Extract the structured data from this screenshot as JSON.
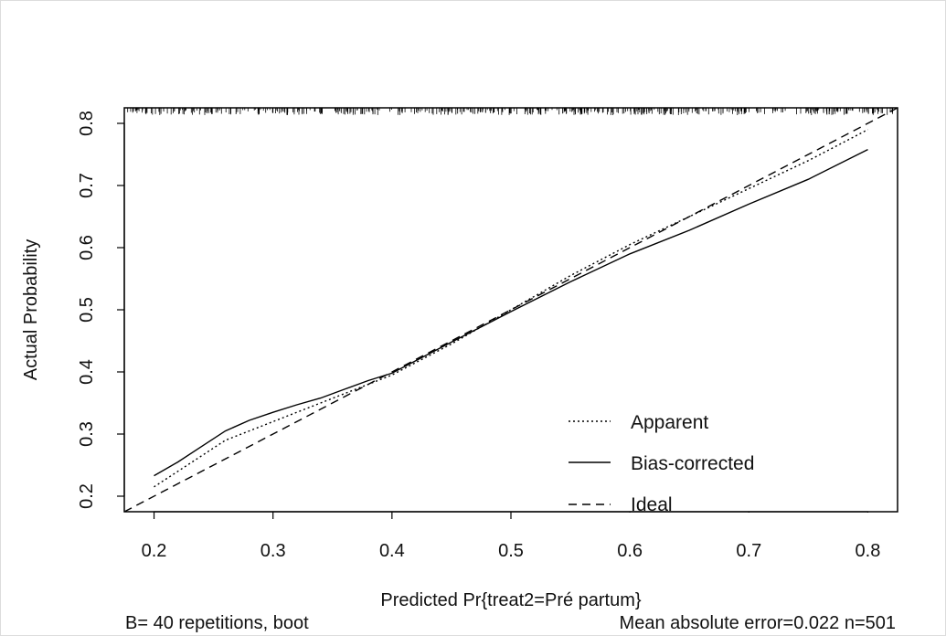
{
  "chart_data": {
    "type": "line",
    "xlabel": "Predicted Pr{treat2=Pré partum}",
    "ylabel": "Actual Probability",
    "xlim": [
      0.175,
      0.825
    ],
    "ylim": [
      0.175,
      0.825
    ],
    "x_ticks": [
      "0.2",
      "0.3",
      "0.4",
      "0.5",
      "0.6",
      "0.7",
      "0.8"
    ],
    "y_ticks": [
      "0.2",
      "0.3",
      "0.4",
      "0.5",
      "0.6",
      "0.7",
      "0.8"
    ],
    "x_tick_values": [
      0.2,
      0.3,
      0.4,
      0.5,
      0.6,
      0.7,
      0.8
    ],
    "y_tick_values": [
      0.2,
      0.3,
      0.4,
      0.5,
      0.6,
      0.7,
      0.8
    ],
    "footer_left": "B= 40 repetitions, boot",
    "footer_right": "Mean absolute error=0.022 n=501",
    "legend_position": "bottom-right",
    "rug_position": "top",
    "series": [
      {
        "name": "Apparent",
        "line_style": "dotted",
        "x": [
          0.2,
          0.22,
          0.24,
          0.26,
          0.28,
          0.3,
          0.32,
          0.34,
          0.36,
          0.38,
          0.4,
          0.45,
          0.5,
          0.55,
          0.6,
          0.65,
          0.7,
          0.75,
          0.8
        ],
        "y": [
          0.215,
          0.24,
          0.265,
          0.29,
          0.305,
          0.32,
          0.335,
          0.35,
          0.365,
          0.38,
          0.395,
          0.445,
          0.5,
          0.555,
          0.605,
          0.65,
          0.695,
          0.74,
          0.79
        ]
      },
      {
        "name": "Bias-corrected",
        "line_style": "solid",
        "x": [
          0.2,
          0.22,
          0.24,
          0.26,
          0.28,
          0.3,
          0.32,
          0.34,
          0.36,
          0.38,
          0.4,
          0.45,
          0.5,
          0.55,
          0.6,
          0.65,
          0.7,
          0.75,
          0.8
        ],
        "y": [
          0.233,
          0.255,
          0.28,
          0.305,
          0.322,
          0.335,
          0.347,
          0.358,
          0.372,
          0.386,
          0.398,
          0.448,
          0.497,
          0.545,
          0.59,
          0.628,
          0.67,
          0.71,
          0.758
        ]
      },
      {
        "name": "Ideal",
        "line_style": "dashed",
        "x": [
          0.175,
          0.825
        ],
        "y": [
          0.175,
          0.825
        ]
      }
    ]
  }
}
